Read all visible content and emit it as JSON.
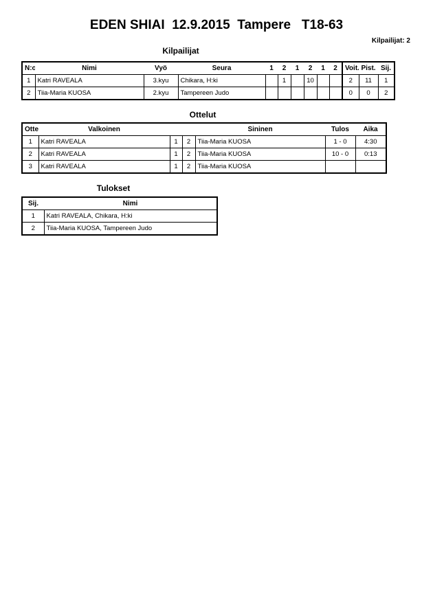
{
  "title": "EDEN SHIAI  12.9.2015  Tampere   T18-63",
  "competitor_count": "Kilpailijat: 2",
  "competitors": {
    "heading": "Kilpailijat",
    "headers": [
      "N:o",
      "Nimi",
      "Vyö",
      "Seura",
      "1",
      "2",
      "1",
      "2",
      "1",
      "2",
      "Voit.",
      "Pist.",
      "Sij."
    ],
    "rows": [
      [
        "1",
        "Katri RAVEALA",
        "3.kyu",
        "Chikara, H:ki",
        "",
        "1",
        "",
        "10",
        "",
        "",
        "2",
        "11",
        "1"
      ],
      [
        "2",
        "Tiia-Maria KUOSA",
        "2.kyu",
        "Tampereen Judo",
        "",
        "",
        "",
        "",
        "",
        "",
        "0",
        "0",
        "2"
      ]
    ]
  },
  "matches": {
    "heading": "Ottelut",
    "headers": [
      "Ottelu",
      "Valkoinen",
      "",
      "",
      "Sininen",
      "Tulos",
      "Aika"
    ],
    "rows": [
      [
        "1",
        "Katri RAVEALA",
        "1",
        "2",
        "Tiia-Maria KUOSA",
        "1 - 0",
        "4:30"
      ],
      [
        "2",
        "Katri RAVEALA",
        "1",
        "2",
        "Tiia-Maria KUOSA",
        "10 - 0",
        "0:13"
      ],
      [
        "3",
        "Katri RAVEALA",
        "1",
        "2",
        "Tiia-Maria KUOSA",
        "",
        ""
      ]
    ]
  },
  "results": {
    "heading": "Tulokset",
    "headers": [
      "Sij.",
      "Nimi"
    ],
    "rows": [
      [
        "1",
        "Katri RAVEALA, Chikara, H:ki"
      ],
      [
        "2",
        "Tiia-Maria KUOSA, Tampereen Judo"
      ]
    ]
  }
}
